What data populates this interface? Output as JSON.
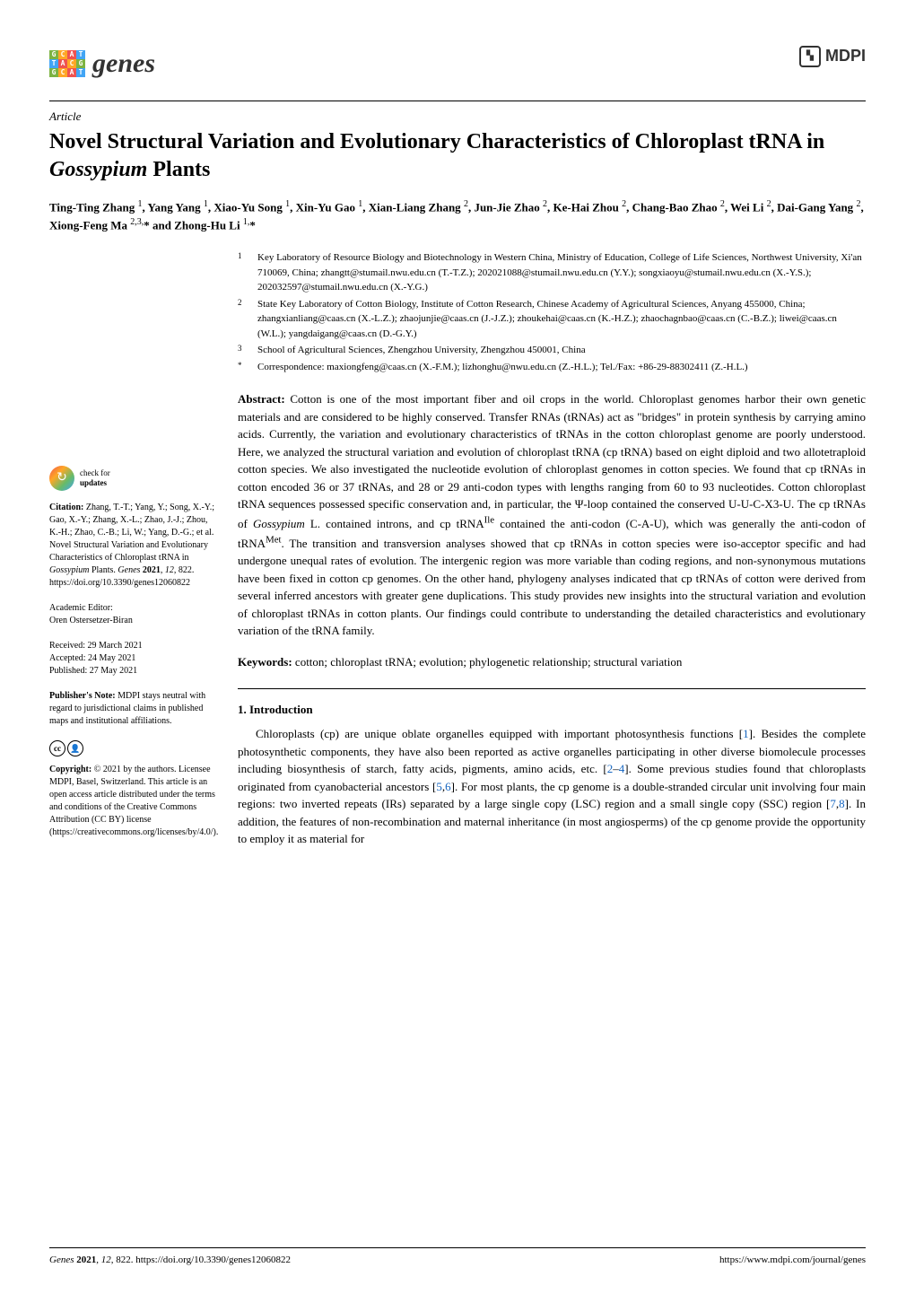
{
  "header": {
    "journal_name": "genes",
    "publisher": "MDPI"
  },
  "article": {
    "type": "Article",
    "title": "Novel Structural Variation and Evolutionary Characteristics of Chloroplast tRNA in Gossypium Plants",
    "authors_html": "Ting-Ting Zhang ¹, Yang Yang ¹, Xiao-Yu Song ¹, Xin-Yu Gao ¹, Xian-Liang Zhang ², Jun-Jie Zhao ², Ke-Hai Zhou ², Chang-Bao Zhao ², Wei Li ², Dai-Gang Yang ², Xiong-Feng Ma ²,³,* and Zhong-Hu Li ¹,*"
  },
  "affiliations": [
    {
      "num": "1",
      "text": "Key Laboratory of Resource Biology and Biotechnology in Western China, Ministry of Education, College of Life Sciences, Northwest University, Xi'an 710069, China; zhangtt@stumail.nwu.edu.cn (T.-T.Z.); 202021088@stumail.nwu.edu.cn (Y.Y.); songxiaoyu@stumail.nwu.edu.cn (X.-Y.S.); 202032597@stumail.nwu.edu.cn (X.-Y.G.)"
    },
    {
      "num": "2",
      "text": "State Key Laboratory of Cotton Biology, Institute of Cotton Research, Chinese Academy of Agricultural Sciences, Anyang 455000, China; zhangxianliang@caas.cn (X.-L.Z.); zhaojunjie@caas.cn (J.-J.Z.); zhoukehai@caas.cn (K.-H.Z.); zhaochagnbao@caas.cn (C.-B.Z.); liwei@caas.cn (W.L.); yangdaigang@caas.cn (D.-G.Y.)"
    },
    {
      "num": "3",
      "text": "School of Agricultural Sciences, Zhengzhou University, Zhengzhou 450001, China"
    },
    {
      "num": "*",
      "text": "Correspondence: maxiongfeng@caas.cn (X.-F.M.); lizhonghu@nwu.edu.cn (Z.-H.L.); Tel./Fax: +86-29-88302411 (Z.-H.L.)"
    }
  ],
  "abstract": {
    "label": "Abstract:",
    "text": " Cotton is one of the most important fiber and oil crops in the world. Chloroplast genomes harbor their own genetic materials and are considered to be highly conserved. Transfer RNAs (tRNAs) act as \"bridges\" in protein synthesis by carrying amino acids. Currently, the variation and evolutionary characteristics of tRNAs in the cotton chloroplast genome are poorly understood. Here, we analyzed the structural variation and evolution of chloroplast tRNA (cp tRNA) based on eight diploid and two allotetraploid cotton species. We also investigated the nucleotide evolution of chloroplast genomes in cotton species. We found that cp tRNAs in cotton encoded 36 or 37 tRNAs, and 28 or 29 anti-codon types with lengths ranging from 60 to 93 nucleotides. Cotton chloroplast tRNA sequences possessed specific conservation and, in particular, the Ψ-loop contained the conserved U-U-C-X3-U. The cp tRNAs of Gossypium L. contained introns, and cp tRNAIle contained the anti-codon (C-A-U), which was generally the anti-codon of tRNAMet. The transition and transversion analyses showed that cp tRNAs in cotton species were iso-acceptor specific and had undergone unequal rates of evolution. The intergenic region was more variable than coding regions, and non-synonymous mutations have been fixed in cotton cp genomes. On the other hand, phylogeny analyses indicated that cp tRNAs of cotton were derived from several inferred ancestors with greater gene duplications. This study provides new insights into the structural variation and evolution of chloroplast tRNAs in cotton plants. Our findings could contribute to understanding the detailed characteristics and evolutionary variation of the tRNA family."
  },
  "keywords": {
    "label": "Keywords:",
    "text": " cotton; chloroplast tRNA; evolution; phylogenetic relationship; structural variation"
  },
  "section1": {
    "heading": "1. Introduction",
    "p1_pre": "Chloroplasts (cp) are unique oblate organelles equipped with important photosynthesis functions [",
    "r1": "1",
    "p1_mid1": "]. Besides the complete photosynthetic components, they have also been reported as active organelles participating in other diverse biomolecule processes including biosynthesis of starch, fatty acids, pigments, amino acids, etc. [",
    "r2": "2",
    "dash": "–",
    "r4": "4",
    "p1_mid2": "]. Some previous studies found that chloroplasts originated from cyanobacterial ancestors [",
    "r5": "5",
    "comma": ",",
    "r6": "6",
    "p1_mid3": "]. For most plants, the cp genome is a double-stranded circular unit involving four main regions: two inverted repeats (IRs) separated by a large single copy (LSC) region and a small single copy (SSC) region [",
    "r7": "7",
    "r8": "8",
    "p1_end": "]. In addition, the features of non-recombination and maternal inheritance (in most angiosperms) of the cp genome provide the opportunity to employ it as material for"
  },
  "sidebar": {
    "check_updates": "check for\nupdates",
    "citation_label": "Citation:",
    "citation_text": " Zhang, T.-T.; Yang, Y.; Song, X.-Y.; Gao, X.-Y.; Zhang, X.-L.; Zhao, J.-J.; Zhou, K.-H.; Zhao, C.-B.; Li, W.; Yang, D.-G.; et al. Novel Structural Variation and Evolutionary Characteristics of Chloroplast tRNA in Gossypium Plants. Genes 2021, 12, 822. https://doi.org/10.3390/genes12060822",
    "editor_label": "Academic Editor:",
    "editor_text": "Oren Ostersetzer-Biran",
    "received_label": "Received:",
    "received_text": " 29 March 2021",
    "accepted_label": "Accepted:",
    "accepted_text": " 24 May 2021",
    "published_label": "Published:",
    "published_text": " 27 May 2021",
    "note_label": "Publisher's Note:",
    "note_text": " MDPI stays neutral with regard to jurisdictional claims in published maps and institutional affiliations.",
    "copyright_label": "Copyright:",
    "copyright_text": " © 2021 by the authors. Licensee MDPI, Basel, Switzerland. This article is an open access article distributed under the terms and conditions of the Creative Commons Attribution (CC BY) license (https://creativecommons.org/licenses/by/4.0/)."
  },
  "footer": {
    "left": "Genes 2021, 12, 822. https://doi.org/10.3390/genes12060822",
    "right": "https://www.mdpi.com/journal/genes"
  }
}
